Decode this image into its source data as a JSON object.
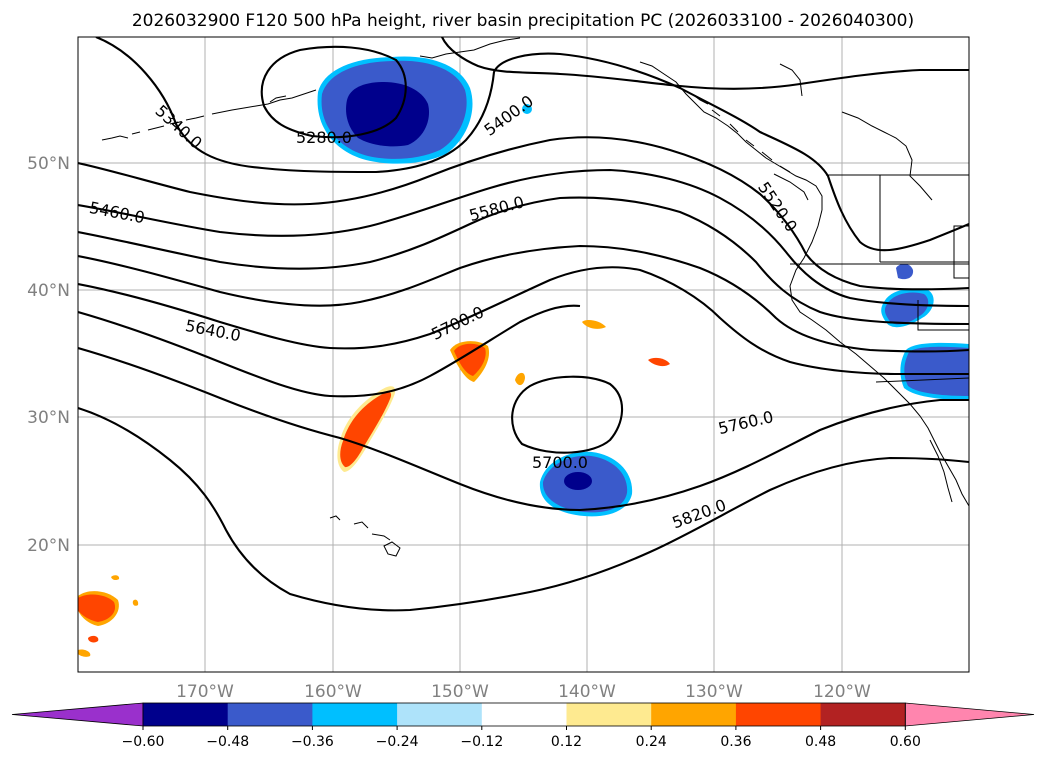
{
  "title": "2026032900 F120 500 hPa height, river basin precipitation PC (2026033100 - 2026040300)",
  "lat_labels": [
    "50°N",
    "40°N",
    "30°N",
    "20°N"
  ],
  "lon_labels": [
    "170°W",
    "160°W",
    "150°W",
    "140°W",
    "130°W",
    "120°W"
  ],
  "colorbar": {
    "colors": [
      "#9a30cc",
      "#00008c",
      "#3a5acb",
      "#00bfff",
      "#aee3fa",
      "#ffffff",
      "#feea90",
      "#ffa500",
      "#ff4500",
      "#b22222",
      "#ff85ae"
    ],
    "tick_labels": [
      "−0.60",
      "−0.48",
      "−0.36",
      "−0.24",
      "−0.12",
      "0.12",
      "0.24",
      "0.36",
      "0.48",
      "0.60"
    ]
  },
  "contour_labels": [
    "5340.0",
    "5280.0",
    "5400.0",
    "5460.0",
    "5520.0",
    "5580.0",
    "5640.0",
    "5700.0",
    "5700.0",
    "5760.0",
    "5820.0"
  ],
  "map_extent": {
    "lon": [
      "180°W",
      "110°W"
    ],
    "lat": [
      "10°N",
      "60°N"
    ]
  },
  "colors": {
    "negative_deep": "#00008c",
    "negative_mid": "#3a5acb",
    "positive_mid": "#ff4500",
    "positive_light": "#ffa500"
  }
}
